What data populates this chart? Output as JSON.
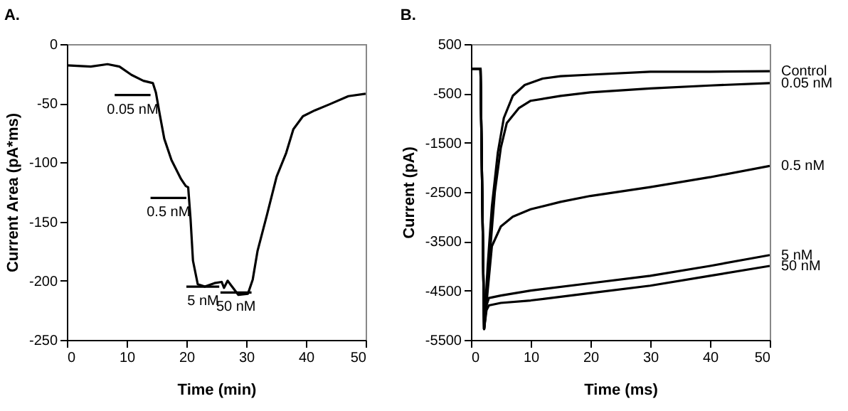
{
  "chart_data": [
    {
      "type": "line",
      "title": "A.",
      "xlabel": "Time (min)",
      "ylabel": "Current Area  (pA*ms)",
      "xlim": [
        0,
        50
      ],
      "ylim": [
        -250,
        0
      ],
      "xticks": [
        0,
        10,
        20,
        30,
        40,
        50
      ],
      "yticks": [
        -250,
        -200,
        -150,
        -100,
        -50,
        0
      ],
      "series": [
        {
          "color": "#000000",
          "x": [
            0,
            4,
            6.8,
            8.8,
            10.8,
            12.8,
            14.4,
            14.9,
            15.6,
            16.3,
            17.5,
            19.1,
            19.9,
            20.3,
            20.7,
            21.1,
            21.9,
            23.1,
            24.7,
            25.9,
            26.3,
            26.9,
            27.5,
            28.7,
            30.3,
            31.1,
            31.9,
            33.5,
            35.1,
            36.7,
            37.9,
            39.5,
            41.5,
            43.9,
            47.1,
            50
          ],
          "values": [
            -18,
            -19,
            -17,
            -19,
            -26,
            -31,
            -33,
            -41,
            -61,
            -80,
            -98,
            -114,
            -120,
            -121,
            -148,
            -183,
            -203,
            -205,
            -202,
            -201,
            -206,
            -200,
            -204,
            -212,
            -211,
            -199,
            -175,
            -144,
            -112,
            -92,
            -72,
            -61,
            -56,
            -51,
            -44,
            -42
          ]
        },
        {
          "color": "#000000",
          "x": [
            8,
            14
          ],
          "values": [
            -43,
            -43
          ]
        },
        {
          "color": "#000000",
          "x": [
            14,
            20
          ],
          "values": [
            -130,
            -130
          ]
        },
        {
          "color": "#000000",
          "x": [
            20,
            25.5
          ],
          "values": [
            -205,
            -205
          ]
        },
        {
          "color": "#000000",
          "x": [
            25.7,
            30.9
          ],
          "values": [
            -210,
            -210
          ]
        }
      ],
      "annotations": [
        {
          "text": "0.05 nM",
          "x": 11,
          "y": -43
        },
        {
          "text": "0.5 nM",
          "x": 17,
          "y": -130
        },
        {
          "text": "5 nM",
          "x": 22.8,
          "y": -205
        },
        {
          "text": "50 nM",
          "x": 28.3,
          "y": -210
        }
      ]
    },
    {
      "type": "line",
      "title": "B.",
      "xlabel": "Time (ms)",
      "ylabel": "Current (pA)",
      "xlim": [
        0,
        50
      ],
      "ylim": [
        -5500,
        500
      ],
      "xticks": [
        0,
        10,
        20,
        30,
        40,
        50
      ],
      "yticks": [
        -5500,
        -4500,
        -3500,
        -2500,
        -1500,
        -500,
        500
      ],
      "series": [
        {
          "name": "Control",
          "color": "#000000",
          "x": [
            0,
            1.6,
            2.2,
            2.8,
            3.5,
            4.5,
            5.5,
            7,
            9,
            12,
            15,
            20,
            30,
            40,
            50
          ],
          "values": [
            0,
            0,
            -5280,
            -4000,
            -2800,
            -1700,
            -1000,
            -550,
            -330,
            -200,
            -150,
            -120,
            -60,
            -60,
            -50
          ]
        },
        {
          "name": "0.05 nM",
          "color": "#000000",
          "x": [
            0,
            1.6,
            2.2,
            3,
            4,
            5,
            6,
            8,
            10,
            15,
            20,
            30,
            40,
            50
          ],
          "values": [
            0,
            0,
            -5280,
            -4000,
            -2500,
            -1600,
            -1100,
            -800,
            -650,
            -550,
            -480,
            -400,
            -340,
            -290
          ]
        },
        {
          "name": "0.5 nM",
          "color": "#000000",
          "x": [
            0,
            1.6,
            2.2,
            2.8,
            3.5,
            5,
            7,
            10,
            15,
            20,
            30,
            40,
            50
          ],
          "values": [
            0,
            0,
            -5280,
            -4500,
            -3600,
            -3200,
            -3000,
            -2850,
            -2700,
            -2580,
            -2400,
            -2200,
            -1970
          ]
        },
        {
          "name": "5 nM",
          "color": "#000000",
          "x": [
            0,
            1.6,
            2.2,
            2.6,
            3,
            5,
            10,
            20,
            30,
            40,
            50
          ],
          "values": [
            0,
            0,
            -5280,
            -4800,
            -4650,
            -4600,
            -4500,
            -4350,
            -4200,
            -4000,
            -3780
          ]
        },
        {
          "name": "50 nM",
          "color": "#000000",
          "x": [
            0,
            1.6,
            2.2,
            2.6,
            3,
            5,
            10,
            20,
            30,
            40,
            50
          ],
          "values": [
            0,
            0,
            -5280,
            -4900,
            -4800,
            -4750,
            -4700,
            -4550,
            -4400,
            -4200,
            -4000
          ]
        }
      ]
    }
  ]
}
